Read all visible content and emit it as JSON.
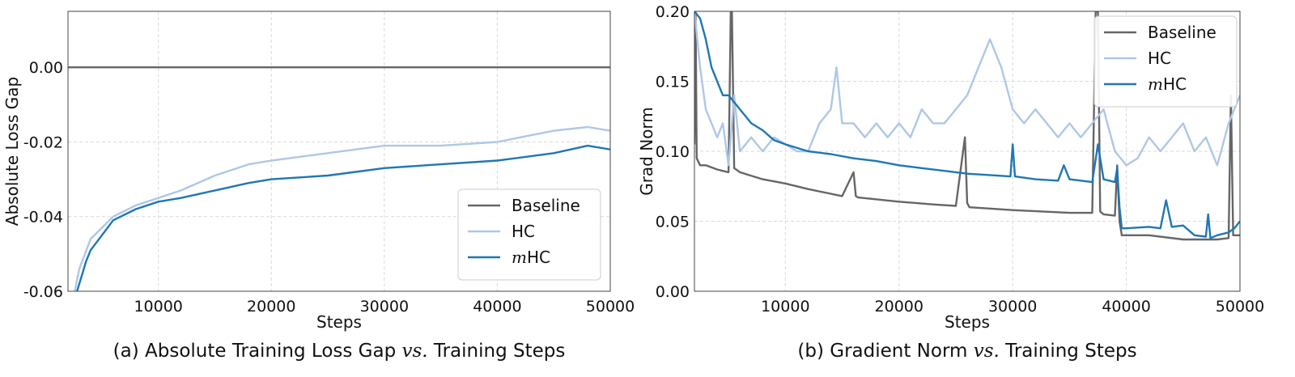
{
  "chart_data": [
    {
      "type": "line",
      "caption": "(a) Absolute Training Loss Gap vs. Training Steps",
      "caption_parts": [
        "(a) Absolute Training Loss Gap ",
        "vs.",
        " Training Steps"
      ],
      "xlabel": "Steps",
      "ylabel": "Absolute Loss Gap",
      "xlim": [
        2000,
        50000
      ],
      "ylim": [
        -0.06,
        0.015
      ],
      "xticks": [
        10000,
        20000,
        30000,
        40000,
        50000
      ],
      "xtick_labels": [
        "10000",
        "20000",
        "30000",
        "40000",
        "50000"
      ],
      "yticks": [
        0.0,
        -0.02,
        -0.04,
        -0.06
      ],
      "ytick_labels": [
        "0.00",
        "-0.02",
        "-0.04",
        "-0.06"
      ],
      "grid": true,
      "legend_position": "lower-right",
      "series": [
        {
          "name": "Baseline",
          "color": "#666666",
          "x": [
            2000,
            50000
          ],
          "y": [
            0.0,
            0.0
          ]
        },
        {
          "name": "HC",
          "color": "#aec7e8",
          "x": [
            2600,
            3000,
            3500,
            4000,
            5000,
            6000,
            8000,
            10000,
            12000,
            15000,
            18000,
            20000,
            25000,
            30000,
            35000,
            40000,
            45000,
            48000,
            50000
          ],
          "y": [
            -0.06,
            -0.054,
            -0.05,
            -0.046,
            -0.043,
            -0.04,
            -0.037,
            -0.035,
            -0.033,
            -0.029,
            -0.026,
            -0.025,
            -0.023,
            -0.021,
            -0.021,
            -0.02,
            -0.017,
            -0.016,
            -0.017
          ]
        },
        {
          "name": "mHC",
          "name_prefix": "m",
          "name_suffix": "HC",
          "color": "#1f77b4",
          "x": [
            2800,
            3200,
            3600,
            4000,
            5000,
            6000,
            8000,
            10000,
            12000,
            15000,
            18000,
            20000,
            25000,
            30000,
            35000,
            40000,
            45000,
            48000,
            50000
          ],
          "y": [
            -0.06,
            -0.056,
            -0.052,
            -0.049,
            -0.045,
            -0.041,
            -0.038,
            -0.036,
            -0.035,
            -0.033,
            -0.031,
            -0.03,
            -0.029,
            -0.027,
            -0.026,
            -0.025,
            -0.023,
            -0.021,
            -0.022
          ]
        }
      ]
    },
    {
      "type": "line",
      "caption": "(b) Gradient Norm vs. Training Steps",
      "caption_parts": [
        "(b) Gradient Norm ",
        "vs.",
        " Training Steps"
      ],
      "xlabel": "Steps",
      "ylabel": "Grad Norm",
      "xlim": [
        2000,
        50000
      ],
      "ylim": [
        0.0,
        0.2
      ],
      "xticks": [
        10000,
        20000,
        30000,
        40000,
        50000
      ],
      "xtick_labels": [
        "10000",
        "20000",
        "30000",
        "40000",
        "50000"
      ],
      "yticks": [
        0.0,
        0.05,
        0.1,
        0.15,
        0.2
      ],
      "ytick_labels": [
        "0.00",
        "0.05",
        "0.10",
        "0.15",
        "0.20"
      ],
      "grid": true,
      "legend_position": "upper-right",
      "series": [
        {
          "name": "Baseline",
          "color": "#666666",
          "x": [
            2000,
            2100,
            2200,
            2500,
            3000,
            4000,
            5000,
            5200,
            5300,
            5500,
            6000,
            8000,
            10000,
            12000,
            15000,
            16000,
            16200,
            16400,
            20000,
            23000,
            25000,
            25800,
            26000,
            26200,
            30000,
            35000,
            37000,
            37300,
            37500,
            37700,
            38000,
            39000,
            39200,
            39400,
            39600,
            40000,
            42000,
            45000,
            48000,
            49000,
            49200,
            49400,
            50000
          ],
          "y": [
            0.105,
            0.2,
            0.095,
            0.09,
            0.09,
            0.087,
            0.085,
            0.2,
            0.2,
            0.088,
            0.085,
            0.08,
            0.077,
            0.073,
            0.068,
            0.085,
            0.068,
            0.067,
            0.064,
            0.062,
            0.061,
            0.11,
            0.063,
            0.06,
            0.058,
            0.056,
            0.056,
            0.2,
            0.2,
            0.057,
            0.055,
            0.054,
            0.09,
            0.05,
            0.04,
            0.04,
            0.04,
            0.037,
            0.037,
            0.038,
            0.14,
            0.04,
            0.04
          ]
        },
        {
          "name": "HC",
          "color": "#aec7e8",
          "x": [
            2000,
            2500,
            3000,
            3500,
            4000,
            4500,
            5000,
            5500,
            6000,
            7000,
            8000,
            9000,
            10000,
            11000,
            12000,
            13000,
            14000,
            14500,
            15000,
            16000,
            17000,
            18000,
            19000,
            20000,
            21000,
            22000,
            23000,
            24000,
            25000,
            26000,
            27000,
            28000,
            29000,
            30000,
            31000,
            32000,
            33000,
            34000,
            35000,
            36000,
            37000,
            38000,
            39000,
            40000,
            41000,
            42000,
            43000,
            44000,
            45000,
            46000,
            47000,
            48000,
            49000,
            50000
          ],
          "y": [
            0.2,
            0.16,
            0.13,
            0.12,
            0.11,
            0.12,
            0.09,
            0.14,
            0.1,
            0.11,
            0.1,
            0.11,
            0.105,
            0.1,
            0.1,
            0.12,
            0.13,
            0.16,
            0.12,
            0.12,
            0.11,
            0.12,
            0.11,
            0.12,
            0.11,
            0.13,
            0.12,
            0.12,
            0.13,
            0.14,
            0.16,
            0.18,
            0.16,
            0.13,
            0.12,
            0.13,
            0.12,
            0.11,
            0.12,
            0.11,
            0.12,
            0.13,
            0.1,
            0.09,
            0.095,
            0.11,
            0.1,
            0.11,
            0.12,
            0.1,
            0.11,
            0.09,
            0.12,
            0.14
          ]
        },
        {
          "name": "mHC",
          "name_prefix": "m",
          "name_suffix": "HC",
          "color": "#1f77b4",
          "x": [
            2000,
            2500,
            3000,
            3500,
            4000,
            4500,
            5000,
            6000,
            7000,
            8000,
            9000,
            10000,
            12000,
            14000,
            16000,
            18000,
            20000,
            22000,
            24000,
            25000,
            26000,
            28000,
            29800,
            30000,
            30200,
            32000,
            34000,
            34500,
            35000,
            37000,
            37500,
            38000,
            39000,
            39200,
            39400,
            39600,
            40000,
            42000,
            43000,
            43500,
            44000,
            45000,
            46000,
            47000,
            47200,
            47400,
            48000,
            49000,
            49500,
            50000
          ],
          "y": [
            0.2,
            0.195,
            0.18,
            0.16,
            0.15,
            0.14,
            0.14,
            0.13,
            0.12,
            0.115,
            0.108,
            0.105,
            0.1,
            0.098,
            0.095,
            0.093,
            0.09,
            0.088,
            0.086,
            0.085,
            0.084,
            0.083,
            0.082,
            0.105,
            0.082,
            0.08,
            0.079,
            0.09,
            0.08,
            0.078,
            0.105,
            0.08,
            0.078,
            0.088,
            0.06,
            0.045,
            0.045,
            0.046,
            0.045,
            0.065,
            0.046,
            0.047,
            0.04,
            0.039,
            0.055,
            0.038,
            0.04,
            0.042,
            0.045,
            0.05
          ]
        }
      ]
    }
  ]
}
